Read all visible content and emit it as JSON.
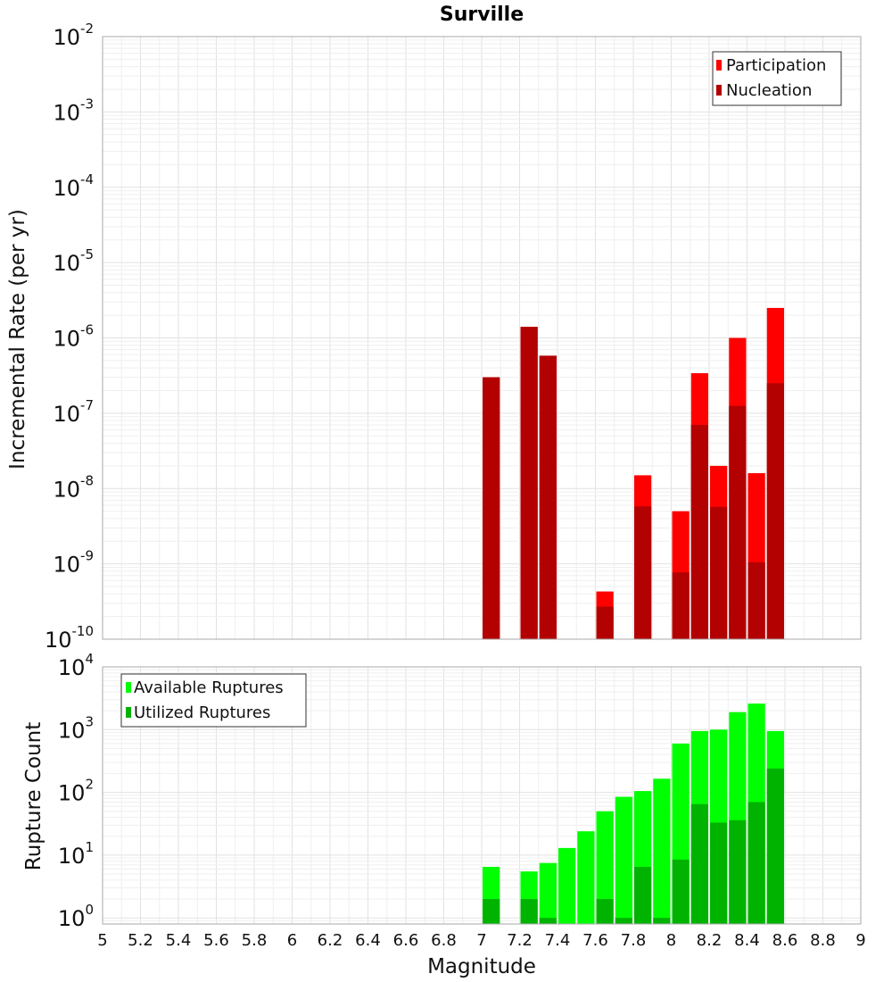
{
  "chart_data": [
    {
      "type": "bar",
      "title": "Surville",
      "ylabel": "Incremental Rate (per yr)",
      "xlabel": "",
      "yscale": "log",
      "ylim": [
        1e-10,
        0.01
      ],
      "xlim": [
        5,
        9
      ],
      "bar_width": 0.1,
      "legend_position": "top-right",
      "y_ticks": [
        {
          "base": "10",
          "exp": "-2"
        },
        {
          "base": "10",
          "exp": "-3"
        },
        {
          "base": "10",
          "exp": "-4"
        },
        {
          "base": "10",
          "exp": "-5"
        },
        {
          "base": "10",
          "exp": "-6"
        },
        {
          "base": "10",
          "exp": "-7"
        },
        {
          "base": "10",
          "exp": "-8"
        },
        {
          "base": "10",
          "exp": "-9"
        },
        {
          "base": "10",
          "exp": "-10"
        }
      ],
      "series": [
        {
          "name": "Participation",
          "color": "#ff0000",
          "x": [
            7.05,
            7.25,
            7.35,
            7.65,
            7.85,
            8.05,
            8.15,
            8.25,
            8.35,
            8.45,
            8.55
          ],
          "values": [
            3e-07,
            1.4e-06,
            5.8e-07,
            4.3e-10,
            1.5e-08,
            5e-09,
            3.4e-07,
            2e-08,
            1e-06,
            1.6e-08,
            2.5e-06
          ]
        },
        {
          "name": "Nucleation",
          "color": "#b30000",
          "x": [
            7.05,
            7.25,
            7.35,
            7.65,
            7.85,
            8.05,
            8.15,
            8.25,
            8.35,
            8.45,
            8.55
          ],
          "values": [
            3e-07,
            1.4e-06,
            5.8e-07,
            2.7e-10,
            5.8e-09,
            7.7e-10,
            7e-08,
            5.7e-09,
            1.25e-07,
            1.05e-09,
            2.5e-07
          ]
        }
      ]
    },
    {
      "type": "bar",
      "title": "",
      "ylabel": "Rupture Count",
      "xlabel": "Magnitude",
      "yscale": "log",
      "ylim": [
        0.8,
        10000
      ],
      "xlim": [
        5,
        9
      ],
      "bar_width": 0.1,
      "legend_position": "top-left",
      "x_ticks": [
        "5",
        "5.2",
        "5.4",
        "5.6",
        "5.8",
        "6",
        "6.2",
        "6.4",
        "6.6",
        "6.8",
        "7",
        "7.2",
        "7.4",
        "7.6",
        "7.8",
        "8",
        "8.2",
        "8.4",
        "8.6",
        "8.8",
        "9"
      ],
      "y_ticks": [
        {
          "base": "10",
          "exp": "4"
        },
        {
          "base": "10",
          "exp": "3"
        },
        {
          "base": "10",
          "exp": "2"
        },
        {
          "base": "10",
          "exp": "1"
        },
        {
          "base": "10",
          "exp": "0"
        }
      ],
      "series": [
        {
          "name": "Available Ruptures",
          "color": "#00ff00",
          "x": [
            7.05,
            7.25,
            7.35,
            7.45,
            7.55,
            7.65,
            7.75,
            7.85,
            7.95,
            8.05,
            8.15,
            8.25,
            8.35,
            8.45,
            8.55
          ],
          "values": [
            6.5,
            5.5,
            7.5,
            13,
            24,
            50,
            85,
            105,
            165,
            600,
            950,
            1000,
            1900,
            2600,
            950
          ]
        },
        {
          "name": "Utilized Ruptures",
          "color": "#00b300",
          "x": [
            7.05,
            7.25,
            7.35,
            7.65,
            7.75,
            7.85,
            7.95,
            8.05,
            8.15,
            8.25,
            8.35,
            8.45,
            8.55
          ],
          "values": [
            2,
            2,
            1,
            2,
            1,
            6.5,
            1,
            8.5,
            65,
            33,
            36,
            70,
            240
          ]
        }
      ]
    }
  ]
}
